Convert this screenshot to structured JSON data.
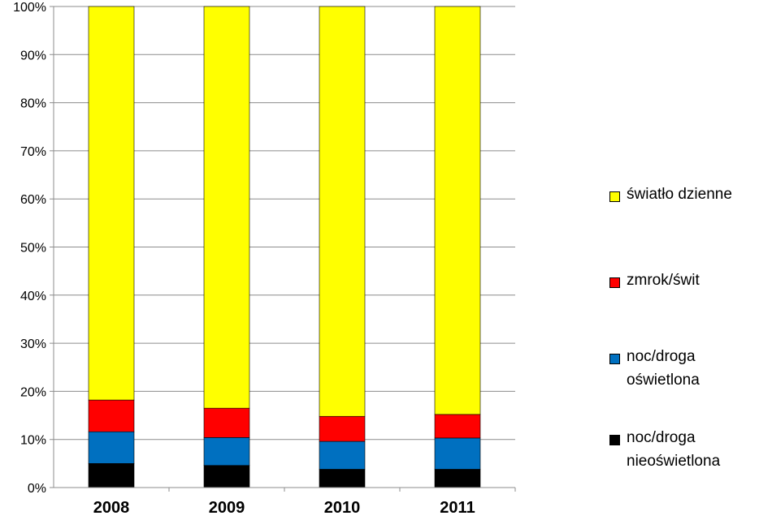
{
  "chart_data": {
    "type": "bar",
    "stacked": true,
    "categories": [
      "2008",
      "2009",
      "2010",
      "2011"
    ],
    "series": [
      {
        "name": "noc/droga nieoświetlona",
        "color": "#000000",
        "values": [
          5.0,
          4.6,
          3.8,
          3.8
        ]
      },
      {
        "name": "noc/droga oświetlona",
        "color": "#0070C0",
        "values": [
          6.6,
          5.8,
          5.8,
          6.5
        ]
      },
      {
        "name": "zmrok/świt",
        "color": "#FF0000",
        "values": [
          6.6,
          6.1,
          5.2,
          4.9
        ]
      },
      {
        "name": "światło dzienne",
        "color": "#FFFF00",
        "values": [
          81.8,
          83.5,
          85.2,
          84.8
        ]
      }
    ],
    "ylim": [
      0,
      100
    ],
    "yticks": [
      "0%",
      "10%",
      "20%",
      "30%",
      "40%",
      "50%",
      "60%",
      "70%",
      "80%",
      "90%",
      "100%"
    ],
    "grid": true,
    "legend_position": "right",
    "legend": [
      {
        "label": "światło dzienne",
        "color": "#FFFF00"
      },
      {
        "label": "zmrok/świt",
        "color": "#FF0000"
      },
      {
        "label": "noc/droga\noświetlona",
        "color": "#0070C0"
      },
      {
        "label": "noc/droga\nnieoświetlona",
        "color": "#000000"
      }
    ]
  }
}
